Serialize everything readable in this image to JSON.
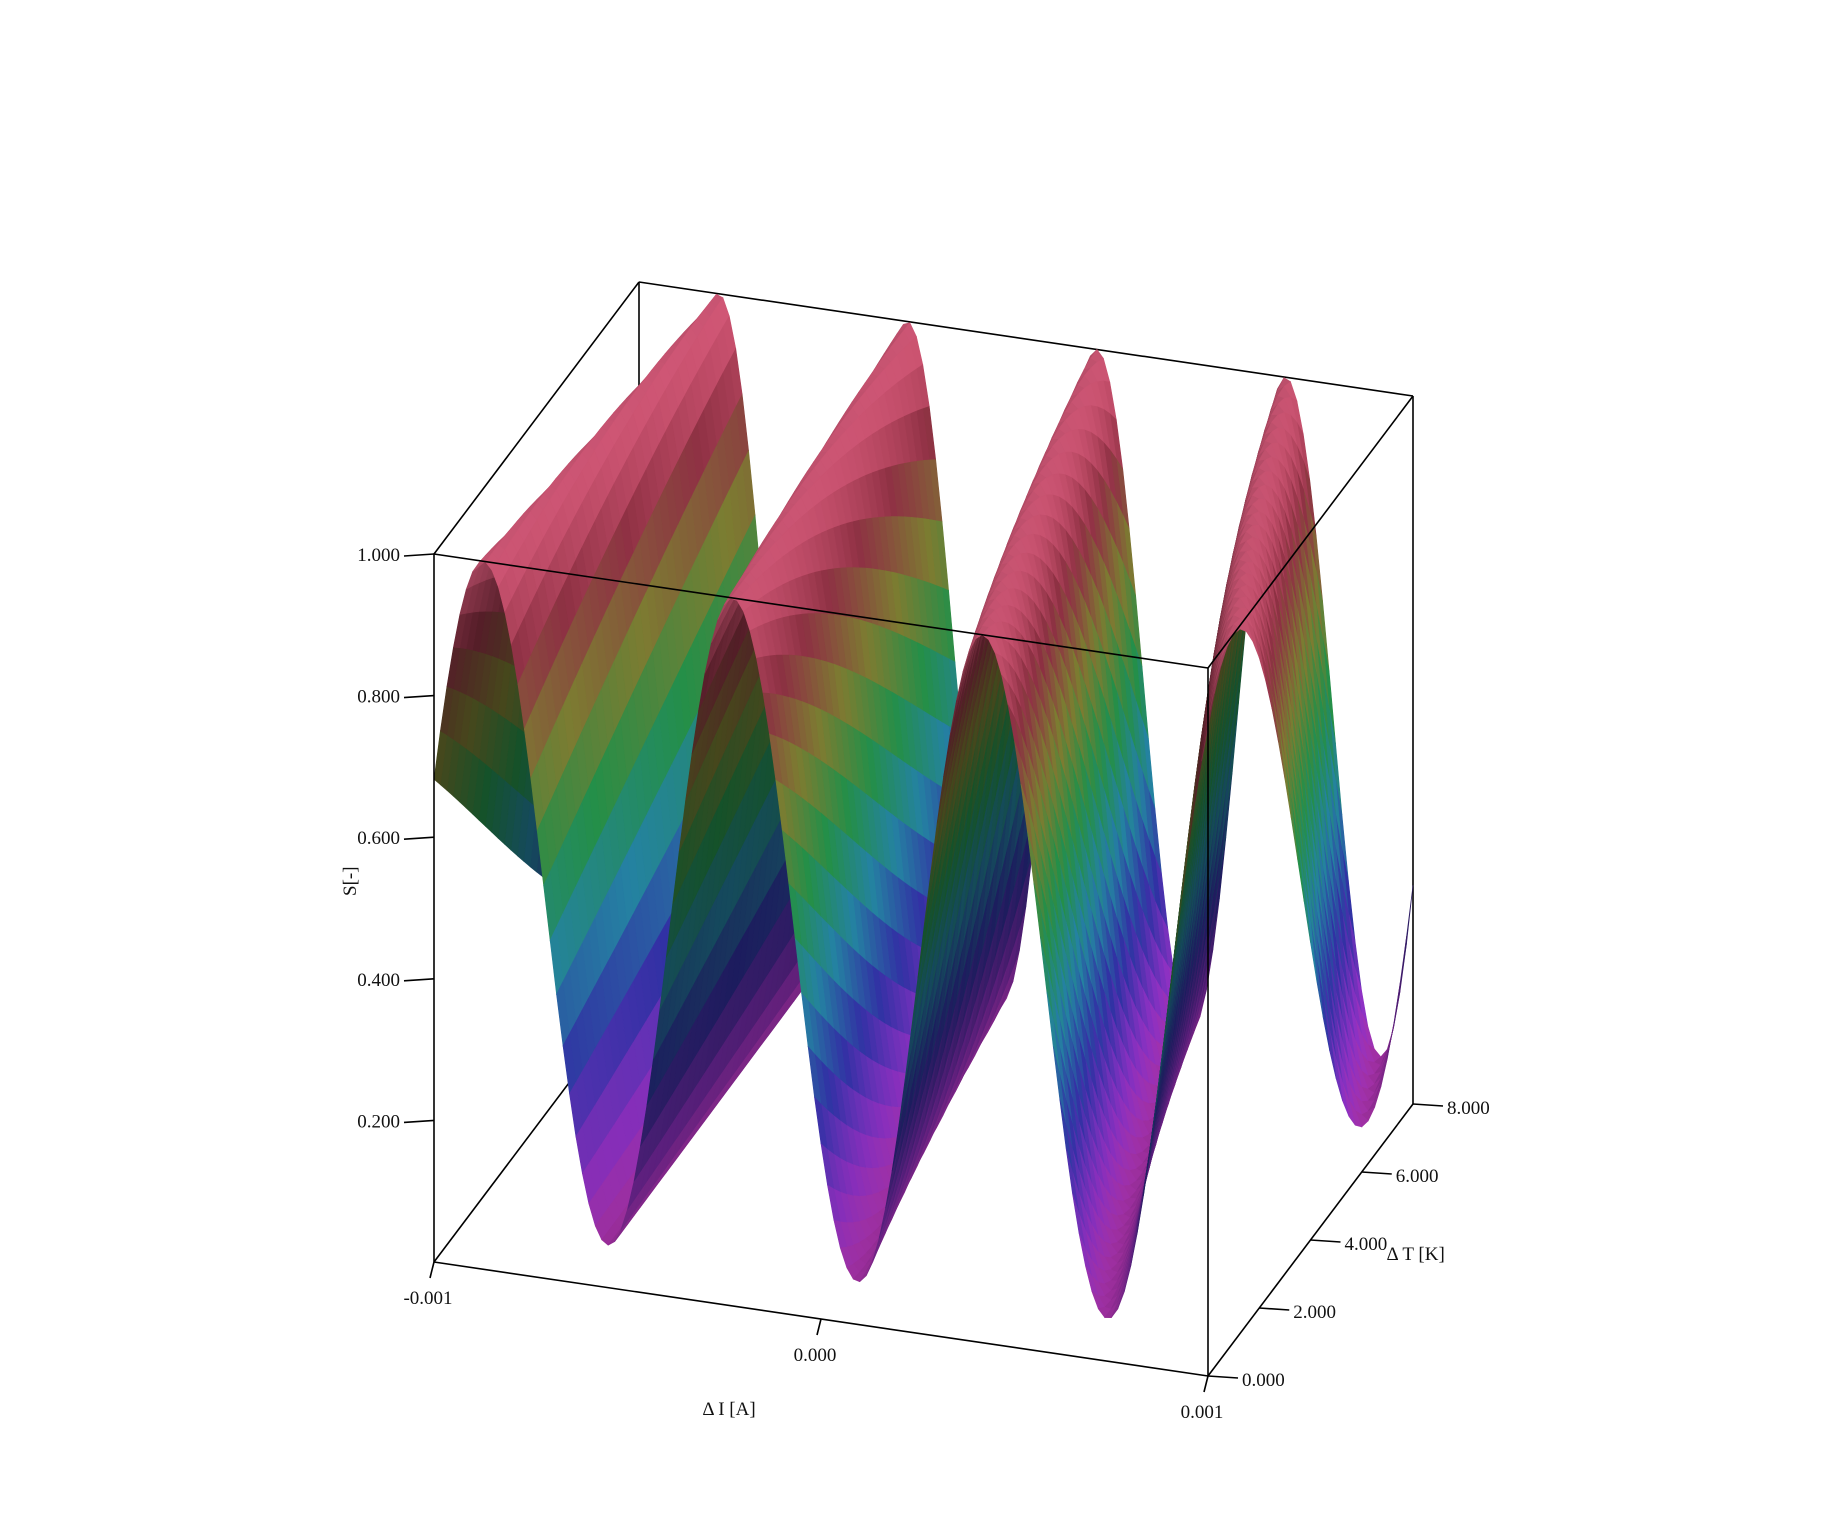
{
  "chart_data": {
    "type": "surface3d",
    "title": "",
    "xlabel": "Δ I [A]",
    "ylabel": "Δ T [K]",
    "zlabel": "S[-]",
    "xlim": [
      -0.001,
      0.001
    ],
    "ylim": [
      0,
      8
    ],
    "zlim": [
      0,
      1
    ],
    "x_ticks": [
      {
        "value": -0.001,
        "label": "-0.001"
      },
      {
        "value": 0.0,
        "label": "0.000"
      },
      {
        "value": 0.001,
        "label": "0.001"
      }
    ],
    "y_ticks": [
      {
        "value": 0,
        "label": "0.000"
      },
      {
        "value": 2,
        "label": "2.000"
      },
      {
        "value": 4,
        "label": "4.000"
      },
      {
        "value": 6,
        "label": "6.000"
      },
      {
        "value": 8,
        "label": "8.000"
      }
    ],
    "z_ticks": [
      {
        "value": 0.2,
        "label": "0.200"
      },
      {
        "value": 0.4,
        "label": "0.400"
      },
      {
        "value": 0.6,
        "label": "0.600"
      },
      {
        "value": 0.8,
        "label": "0.800"
      },
      {
        "value": 1.0,
        "label": "1.000"
      }
    ],
    "surface": {
      "description_function": "S = 0.5 + 0.5*cos(2*pi*(x/period) * (1 + 0.35*y/8) + phase)",
      "minima_at_y0": [
        -0.00055,
        0.00011,
        0.00074
      ],
      "maxima_at_y0": [
        -0.00085,
        -0.0002,
        0.00043
      ],
      "grid_x_count": 121,
      "grid_y_count": 33,
      "colormap": [
        "#c0359e",
        "#7a2aa8",
        "#2a2a8c",
        "#1f6f8a",
        "#1f7a3e",
        "#6a6a2a",
        "#7a2a3a",
        "#d65a7a"
      ]
    },
    "grid": false,
    "legend": "none"
  }
}
